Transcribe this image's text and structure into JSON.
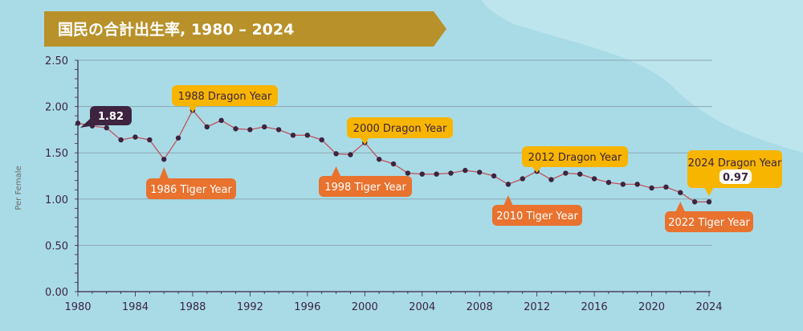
{
  "colors": {
    "background": "#a9dbe6",
    "background_blob": "#bde5ee",
    "title_banner": "#b8912a",
    "line": "#c0525e",
    "point": "#3d2440",
    "gridline": "#8aa7b3",
    "dragon_label": "#f7b500",
    "tiger_label": "#e8722e",
    "value_label_dark": "#3d2440"
  },
  "chart_data": {
    "type": "line",
    "title": "国民の合計出生率, 1980 – 2024",
    "ylabel": "Per Female",
    "xlabel": "",
    "xlim": [
      1980,
      2024
    ],
    "ylim": [
      0,
      2.5
    ],
    "x_ticks": [
      "1980",
      "1984",
      "1988",
      "1992",
      "1996",
      "2000",
      "2004",
      "2008",
      "2012",
      "2016",
      "2020",
      "2024"
    ],
    "y_ticks": [
      "0.00",
      "0.50",
      "1.00",
      "1.50",
      "2.00",
      "2.50"
    ],
    "grid": true,
    "x": [
      1980,
      1981,
      1982,
      1983,
      1984,
      1985,
      1986,
      1987,
      1988,
      1989,
      1990,
      1991,
      1992,
      1993,
      1994,
      1995,
      1996,
      1997,
      1998,
      1999,
      2000,
      2001,
      2002,
      2003,
      2004,
      2005,
      2006,
      2007,
      2008,
      2009,
      2010,
      2011,
      2012,
      2013,
      2014,
      2015,
      2016,
      2017,
      2018,
      2019,
      2020,
      2021,
      2022,
      2023,
      2024
    ],
    "values": [
      1.82,
      1.79,
      1.77,
      1.64,
      1.67,
      1.64,
      1.43,
      1.66,
      1.96,
      1.78,
      1.85,
      1.76,
      1.75,
      1.78,
      1.75,
      1.69,
      1.69,
      1.64,
      1.49,
      1.48,
      1.61,
      1.43,
      1.38,
      1.28,
      1.27,
      1.27,
      1.28,
      1.31,
      1.29,
      1.25,
      1.16,
      1.22,
      1.3,
      1.21,
      1.28,
      1.27,
      1.22,
      1.18,
      1.16,
      1.16,
      1.12,
      1.13,
      1.07,
      0.97,
      0.97
    ],
    "annotations": [
      {
        "year": 1980,
        "text": "1.82",
        "kind": "value"
      },
      {
        "year": 1988,
        "text": "1988 Dragon Year",
        "kind": "dragon"
      },
      {
        "year": 1986,
        "text": "1986 Tiger Year",
        "kind": "tiger"
      },
      {
        "year": 2000,
        "text": "2000 Dragon Year",
        "kind": "dragon"
      },
      {
        "year": 1998,
        "text": "1998 Tiger Year",
        "kind": "tiger"
      },
      {
        "year": 2012,
        "text": "2012 Dragon Year",
        "kind": "dragon"
      },
      {
        "year": 2010,
        "text": "2010 Tiger Year",
        "kind": "tiger"
      },
      {
        "year": 2024,
        "text": "2024 Dragon Year",
        "kind": "dragon"
      },
      {
        "year": 2024,
        "text": "0.97",
        "kind": "inner-value"
      },
      {
        "year": 2022,
        "text": "2022 Tiger Year",
        "kind": "tiger"
      }
    ]
  }
}
